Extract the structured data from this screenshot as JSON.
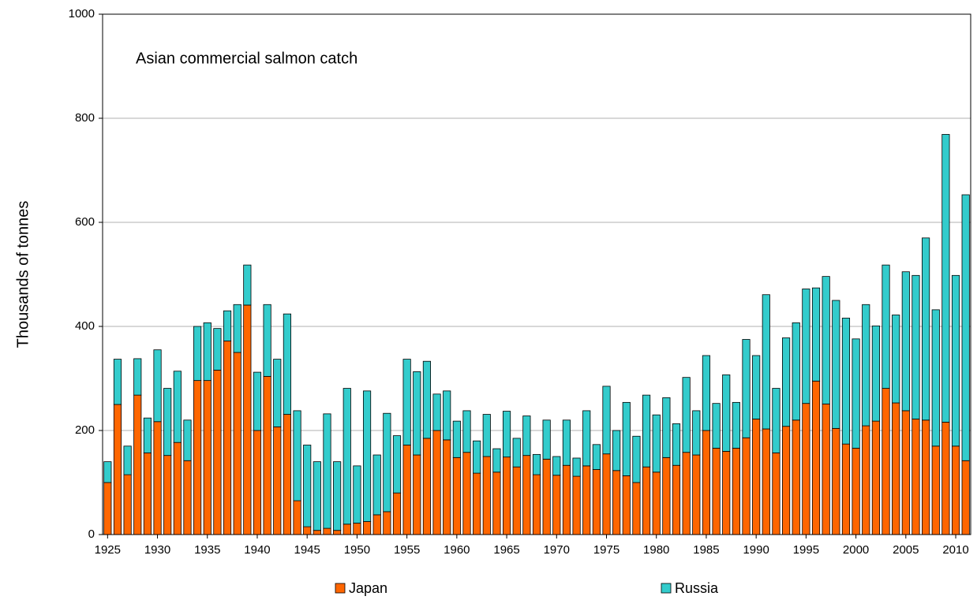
{
  "chart_data": {
    "type": "stacked_bar",
    "annotation": "Asian commercial salmon catch",
    "y_label": "Thousands of tonnes",
    "categories": [
      "1925",
      null,
      null,
      null,
      null,
      "1930",
      null,
      null,
      null,
      null,
      "1935",
      null,
      null,
      null,
      null,
      "1940",
      null,
      null,
      null,
      null,
      "1945",
      null,
      null,
      null,
      null,
      "1950",
      null,
      null,
      null,
      null,
      "1955",
      null,
      null,
      null,
      null,
      "1960",
      null,
      null,
      null,
      null,
      "1965",
      null,
      null,
      null,
      null,
      "1970",
      null,
      null,
      null,
      null,
      "1975",
      null,
      null,
      null,
      null,
      "1980",
      null,
      null,
      null,
      null,
      "1985",
      null,
      null,
      null,
      null,
      "1990",
      null,
      null,
      null,
      null,
      "1995",
      null,
      null,
      null,
      null,
      "2000",
      null,
      null,
      null,
      null,
      "2005",
      null,
      null,
      null,
      null,
      "2010",
      null
    ],
    "series": [
      {
        "name": "Japan",
        "color": "#ff6600",
        "values": [
          100,
          250,
          115,
          268,
          157,
          217,
          152,
          177,
          142,
          296,
          296,
          316,
          372,
          350,
          441,
          200,
          304,
          207,
          231,
          65,
          15,
          8,
          12,
          8,
          20,
          22,
          25,
          38,
          44,
          80,
          172,
          153,
          185,
          200,
          182,
          148,
          158,
          118,
          150,
          120,
          149,
          130,
          152,
          115,
          145,
          114,
          133,
          112,
          132,
          125,
          155,
          123,
          113,
          100,
          130,
          120,
          148,
          133,
          158,
          153,
          200,
          166,
          160,
          166,
          186,
          222,
          203,
          157,
          208,
          220,
          252,
          295,
          251,
          204,
          174,
          166,
          209,
          218,
          281,
          253,
          238,
          222,
          220,
          170,
          216,
          170,
          142
        ]
      },
      {
        "name": "Russia",
        "color": "#33cccc",
        "values": [
          40,
          87,
          55,
          70,
          67,
          138,
          129,
          137,
          78,
          104,
          111,
          80,
          58,
          92,
          77,
          112,
          138,
          130,
          193,
          173,
          157,
          132,
          220,
          132,
          261,
          110,
          251,
          115,
          189,
          110,
          165,
          160,
          148,
          70,
          94,
          70,
          80,
          62,
          81,
          45,
          88,
          55,
          76,
          39,
          75,
          36,
          87,
          35,
          106,
          48,
          130,
          77,
          141,
          89,
          138,
          110,
          115,
          80,
          144,
          85,
          144,
          86,
          147,
          88,
          189,
          122,
          258,
          124,
          170,
          187,
          220,
          179,
          245,
          246,
          242,
          210,
          233,
          183,
          237,
          169,
          267,
          276,
          350,
          262,
          553,
          328,
          511
        ]
      }
    ],
    "ylim": [
      0,
      1000
    ],
    "yticks": [
      0,
      200,
      400,
      600,
      800,
      1000
    ],
    "grid": true,
    "legend": "bottom"
  }
}
